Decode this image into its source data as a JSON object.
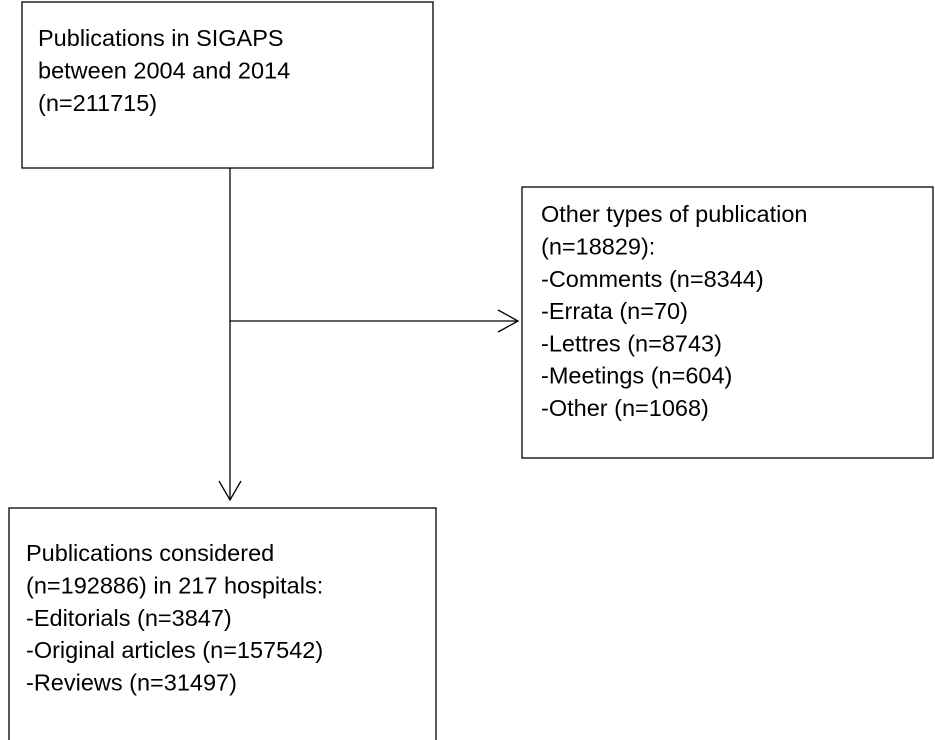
{
  "nodes": [
    {
      "lines": [
        "Publications in SIGAPS",
        "between 2004 and 2014",
        "(n=211715)"
      ]
    },
    {
      "lines": [
        "Other types of publication",
        "(n=18829):",
        "-Comments (n=8344)",
        "-Errata (n=70)",
        "-Lettres (n=8743)",
        "-Meetings (n=604)",
        "-Other (n=1068)"
      ]
    },
    {
      "lines": [
        "Publications considered",
        "(n=192886) in 217 hospitals:",
        "-Editorials (n=3847)",
        "-Original articles (n=157542)",
        "-Reviews (n=31497)"
      ]
    }
  ]
}
